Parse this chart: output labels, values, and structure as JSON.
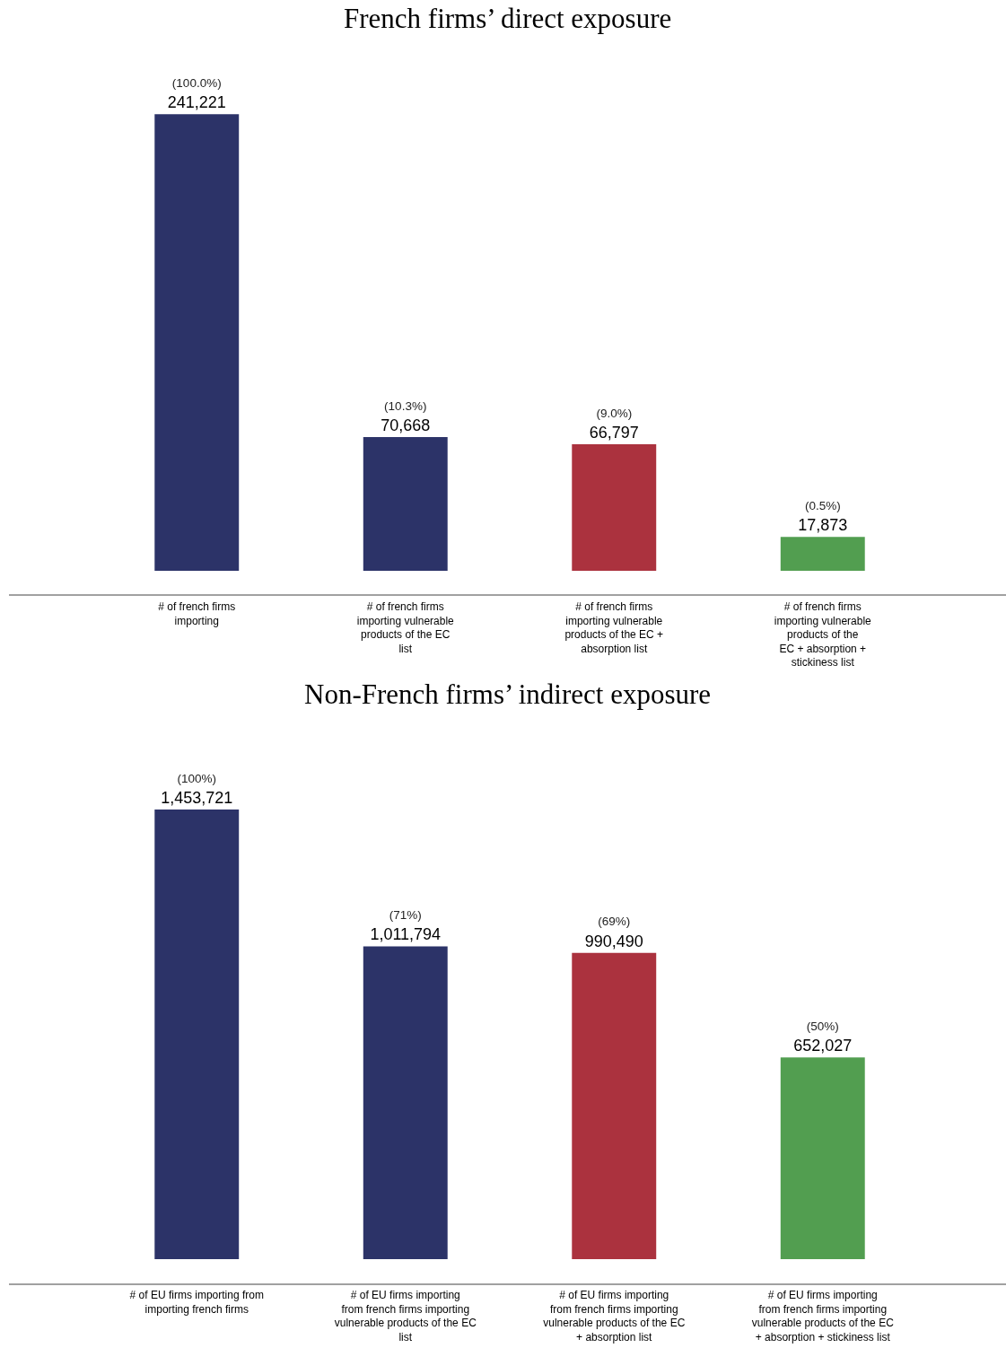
{
  "chart_data": [
    {
      "type": "bar",
      "title": "French firms’ direct exposure",
      "categories": [
        "# of french firms\nimporting",
        "# of french firms\nimporting vulnerable\nproducts of the EC\nlist",
        "# of french firms\nimporting vulnerable\nproducts of the EC +\nabsorption list",
        "# of french firms\nimporting vulnerable\nproducts of the\nEC + absorption +\nstickiness list"
      ],
      "values": [
        241221,
        70668,
        66797,
        17873
      ],
      "colors": [
        "#2c3368",
        "#2c3368",
        "#ab323e",
        "#529e50"
      ],
      "value_labels": [
        "(100.0%)\n241,221",
        "(10.3%)\n70,668",
        "(9.0%)\n66,797",
        "(0.5%)\n17,873"
      ],
      "tick_labels": "x"
    },
    {
      "type": "bar",
      "title": "Non-French firms’ indirect exposure",
      "categories": [
        "# of EU firms importing from\nimporting french firms",
        "# of EU firms importing\nfrom french firms importing\nvulnerable products of the EC\nlist",
        "# of EU firms importing\nfrom french firms importing\nvulnerable products of the EC\n+ absorption list",
        "# of EU firms importing\nfrom french firms importing\nvulnerable products of the EC\n+ absorption + stickiness list"
      ],
      "values": [
        1453721,
        1011794,
        990490,
        652027
      ],
      "colors": [
        "#2c3368",
        "#2c3368",
        "#ab323e",
        "#529e50"
      ],
      "value_labels": [
        "(100%)\n1,453,721",
        "(71%)\n1,011,794",
        "(69%)\n990,490",
        "(50%)\n652,027"
      ],
      "tick_labels": "x"
    }
  ]
}
